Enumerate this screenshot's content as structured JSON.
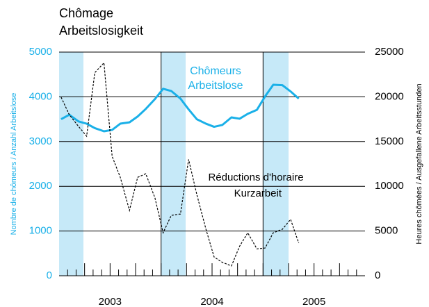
{
  "chart_data": {
    "type": "line",
    "title": [
      "Chômage",
      "Arbeitslosigkeit"
    ],
    "ylabel": "Nombre de chômeurs / Anzahl Arbeitslose",
    "y2label": "Heures chômées / Ausgefallene Arbeitsstunden",
    "xlim": [
      2003,
      2006
    ],
    "xticks": [
      {
        "value": 2003.5,
        "label": "2003"
      },
      {
        "value": 2004.5,
        "label": "2004"
      },
      {
        "value": 2005.5,
        "label": "2005"
      }
    ],
    "ylim": [
      0,
      5000
    ],
    "yticks": [
      0,
      1000,
      2000,
      3000,
      4000,
      5000
    ],
    "y2lim": [
      0,
      25000
    ],
    "y2ticks": [
      0,
      5000,
      10000,
      15000,
      20000,
      25000
    ],
    "grid": true,
    "x": [
      2003.02,
      2003.1,
      2003.19,
      2003.27,
      2003.35,
      2003.44,
      2003.52,
      2003.6,
      2003.69,
      2003.77,
      2003.85,
      2003.94,
      2004.02,
      2004.1,
      2004.19,
      2004.27,
      2004.35,
      2004.44,
      2004.52,
      2004.6,
      2004.69,
      2004.77,
      2004.85,
      2004.94,
      2005.02,
      2005.1,
      2005.19,
      2005.27,
      2005.35
    ],
    "series": [
      {
        "name": [
          "Chômeurs",
          "Arbeitslose"
        ],
        "color": "#1ab0e8",
        "axis": "y",
        "values": [
          3500,
          3600,
          3450,
          3400,
          3300,
          3230,
          3260,
          3400,
          3430,
          3560,
          3730,
          3950,
          4180,
          4130,
          3960,
          3720,
          3500,
          3400,
          3330,
          3370,
          3540,
          3510,
          3620,
          3710,
          4010,
          4270,
          4260,
          4120,
          3960
        ]
      },
      {
        "name": [
          "Réductions d'horaire",
          "Kurzarbeit"
        ],
        "color": "#000000",
        "axis": "y2",
        "values": [
          19950,
          18000,
          16700,
          15600,
          22700,
          23800,
          13350,
          11000,
          7300,
          11000,
          11400,
          8700,
          4800,
          6750,
          6900,
          13000,
          9100,
          5200,
          2100,
          1500,
          1100,
          3300,
          4800,
          3000,
          3100,
          4800,
          5200,
          6300,
          3650
        ]
      }
    ]
  }
}
